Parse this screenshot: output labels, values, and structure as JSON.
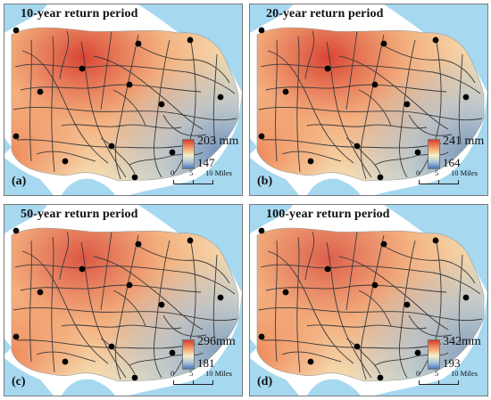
{
  "figure": {
    "panels": [
      {
        "tag": "(a)",
        "title": "10-year return period",
        "legend": {
          "max_label": "203 mm",
          "min_label": "147"
        }
      },
      {
        "tag": "(b)",
        "title": "20-year return period",
        "legend": {
          "max_label": "241 mm",
          "min_label": "164"
        }
      },
      {
        "tag": "(c)",
        "title": "50-year return period",
        "legend": {
          "max_label": "296mm",
          "min_label": "181"
        }
      },
      {
        "tag": "(d)",
        "title": "100-year return period",
        "legend": {
          "max_label": "342mm",
          "min_label": "193"
        }
      }
    ],
    "scalebar": {
      "labels": [
        "0",
        "5",
        "10 Miles"
      ]
    },
    "colors": {
      "high": "#d73b2c",
      "mid": "#f5f0c8",
      "low": "#4a76b5",
      "water": "#a6d8f0",
      "roads": "#3a3a3a",
      "stations": "#000000"
    }
  }
}
